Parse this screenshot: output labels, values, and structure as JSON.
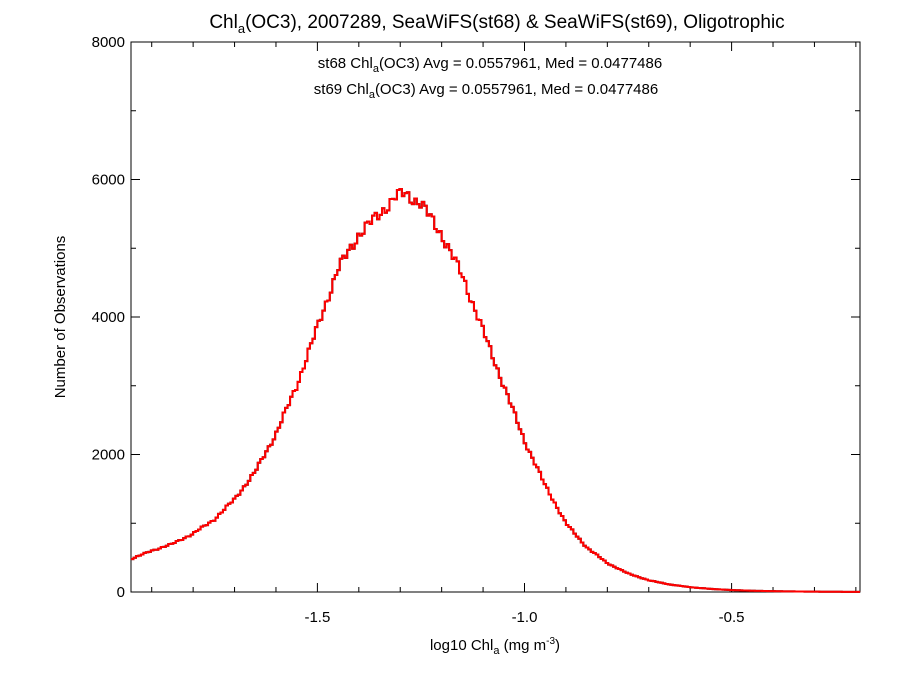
{
  "chart_data": {
    "type": "histogram-step",
    "title_main": "Chl",
    "title_sub": "a",
    "title_rest": "(OC3), 2007289, SeaWiFS(st68) & SeaWiFS(st69), Oligotrophic",
    "xlabel_main": "log10 Chl",
    "xlabel_sub": "a",
    "xlabel_unit": " (mg m",
    "xlabel_sup": "-3",
    "xlabel_end": ")",
    "ylabel": "Number of Observations",
    "xlim": [
      -1.95,
      -0.19
    ],
    "ylim": [
      0,
      8000
    ],
    "xticks": [
      -1.5,
      -1.0,
      -0.5
    ],
    "xtick_labels": [
      "-1.5",
      "-1.0",
      "-0.5"
    ],
    "yticks": [
      0,
      2000,
      4000,
      6000,
      8000
    ],
    "ytick_labels": [
      "0",
      "2000",
      "4000",
      "6000",
      "8000"
    ],
    "annotations": [
      {
        "prefix": "st68 Chl",
        "sub": "a",
        "suffix": "(OC3) Avg = 0.0557961, Med = 0.0477486",
        "color": "#000000"
      },
      {
        "prefix": "st69 Chl",
        "sub": "a",
        "suffix": "(OC3) Avg = 0.0557961, Med = 0.0477486",
        "color": "#ff0000"
      }
    ],
    "series": [
      {
        "name": "st68",
        "color": "#000000",
        "points": [
          [
            -1.95,
            480
          ],
          [
            -1.9,
            600
          ],
          [
            -1.85,
            700
          ],
          [
            -1.8,
            850
          ],
          [
            -1.75,
            1050
          ],
          [
            -1.7,
            1350
          ],
          [
            -1.65,
            1750
          ],
          [
            -1.6,
            2300
          ],
          [
            -1.55,
            3000
          ],
          [
            -1.5,
            3850
          ],
          [
            -1.45,
            4700
          ],
          [
            -1.4,
            5200
          ],
          [
            -1.35,
            5500
          ],
          [
            -1.31,
            5750
          ],
          [
            -1.29,
            5800
          ],
          [
            -1.25,
            5650
          ],
          [
            -1.2,
            5200
          ],
          [
            -1.15,
            4600
          ],
          [
            -1.1,
            3800
          ],
          [
            -1.05,
            3000
          ],
          [
            -1.0,
            2200
          ],
          [
            -0.95,
            1550
          ],
          [
            -0.9,
            1000
          ],
          [
            -0.85,
            650
          ],
          [
            -0.8,
            420
          ],
          [
            -0.75,
            270
          ],
          [
            -0.7,
            170
          ],
          [
            -0.65,
            110
          ],
          [
            -0.6,
            70
          ],
          [
            -0.55,
            45
          ],
          [
            -0.5,
            28
          ],
          [
            -0.45,
            18
          ],
          [
            -0.4,
            12
          ],
          [
            -0.35,
            8
          ],
          [
            -0.3,
            5
          ],
          [
            -0.25,
            3
          ],
          [
            -0.19,
            2
          ]
        ]
      },
      {
        "name": "st69",
        "color": "#ff0000",
        "points": [
          [
            -1.95,
            480
          ],
          [
            -1.9,
            600
          ],
          [
            -1.85,
            700
          ],
          [
            -1.8,
            850
          ],
          [
            -1.75,
            1050
          ],
          [
            -1.7,
            1350
          ],
          [
            -1.65,
            1750
          ],
          [
            -1.6,
            2300
          ],
          [
            -1.55,
            3000
          ],
          [
            -1.5,
            3850
          ],
          [
            -1.45,
            4700
          ],
          [
            -1.4,
            5200
          ],
          [
            -1.35,
            5500
          ],
          [
            -1.31,
            5750
          ],
          [
            -1.29,
            5800
          ],
          [
            -1.25,
            5650
          ],
          [
            -1.2,
            5200
          ],
          [
            -1.15,
            4600
          ],
          [
            -1.1,
            3800
          ],
          [
            -1.05,
            3000
          ],
          [
            -1.0,
            2200
          ],
          [
            -0.95,
            1550
          ],
          [
            -0.9,
            1000
          ],
          [
            -0.85,
            650
          ],
          [
            -0.8,
            420
          ],
          [
            -0.75,
            270
          ],
          [
            -0.7,
            170
          ],
          [
            -0.65,
            110
          ],
          [
            -0.6,
            70
          ],
          [
            -0.55,
            45
          ],
          [
            -0.5,
            28
          ],
          [
            -0.45,
            18
          ],
          [
            -0.4,
            12
          ],
          [
            -0.35,
            8
          ],
          [
            -0.3,
            5
          ],
          [
            -0.25,
            3
          ],
          [
            -0.19,
            2
          ]
        ]
      }
    ]
  }
}
